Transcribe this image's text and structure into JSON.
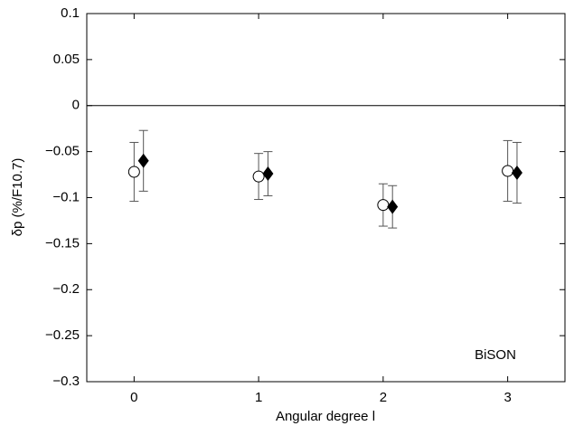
{
  "chart_data": {
    "type": "scatter",
    "x_label": "Angular degree l",
    "y_label": "δp (%/F10.7)",
    "annotation": "BiSON",
    "xlim": [
      -0.38,
      3.46
    ],
    "ylim": [
      -0.3,
      0.1
    ],
    "xticks": [
      0,
      1,
      2,
      3
    ],
    "yticks": [
      0.1,
      0.05,
      0,
      {
        "value": -0.05,
        "label": "−0.05"
      },
      {
        "value": -0.1,
        "label": "−0.1"
      },
      {
        "value": -0.15,
        "label": "−0.15"
      },
      {
        "value": -0.2,
        "label": "−0.2"
      },
      {
        "value": -0.25,
        "label": "−0.25"
      },
      {
        "value": -0.3,
        "label": "−0.3"
      }
    ],
    "series": [
      {
        "marker": "circle",
        "color": "#000000",
        "x": [
          0,
          1,
          2,
          3
        ],
        "values": [
          -0.072,
          -0.077,
          -0.108,
          -0.071
        ],
        "errors": [
          0.032,
          0.025,
          0.023,
          0.033
        ]
      },
      {
        "marker": "diamond",
        "color": "#000000",
        "x": [
          0.075,
          1.075,
          2.075,
          3.075
        ],
        "values": [
          -0.06,
          -0.074,
          -0.11,
          -0.073
        ],
        "errors": [
          0.033,
          0.024,
          0.023,
          0.033
        ]
      }
    ]
  }
}
